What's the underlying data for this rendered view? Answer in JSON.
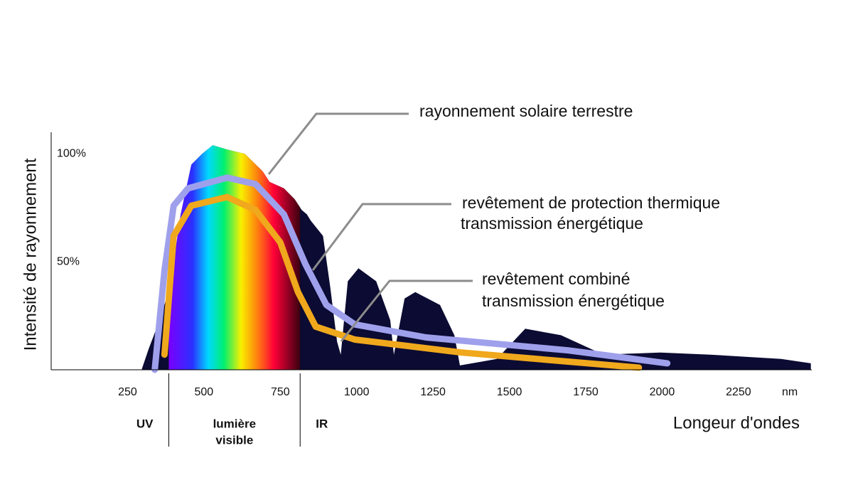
{
  "chart_data": {
    "type": "line",
    "xlim": [
      0,
      2490
    ],
    "ylim": [
      0,
      110
    ],
    "xticks": [
      250,
      500,
      750,
      1000,
      1250,
      1500,
      1750,
      2000,
      2250
    ],
    "yticks": [
      {
        "value": 50,
        "label": "50%"
      },
      {
        "value": 100,
        "label": "100%"
      }
    ],
    "x_unit": "nm",
    "xlabel": "Longeur d'ondes",
    "ylabel": "Intensité de rayonnement",
    "grid": false,
    "region_bounds": [
      385,
      815
    ],
    "regions": [
      {
        "lines": [
          "UV"
        ]
      },
      {
        "lines": [
          "lumière",
          "visible"
        ]
      },
      {
        "lines": [
          "IR"
        ]
      }
    ],
    "series": [
      {
        "color": "#0b0b33",
        "fill": true,
        "x": [
          296,
          320,
          355,
          390,
          424,
          459,
          494,
          529,
          576,
          634,
          692,
          715,
          762,
          797,
          820,
          837,
          850,
          890,
          913,
          936,
          948,
          971,
          1006,
          1064,
          1110,
          1122,
          1157,
          1192,
          1273,
          1320,
          1338,
          1459,
          1552,
          1669,
          1808,
          1994,
          2157,
          2390,
          2487
        ],
        "values": [
          0,
          10,
          23,
          39,
          72,
          95,
          100,
          104,
          102,
          100,
          92,
          87,
          84,
          79,
          74,
          72,
          69,
          62,
          39,
          13,
          7,
          41,
          47,
          41,
          23,
          7,
          33,
          36,
          30,
          16,
          2,
          5,
          19,
          16,
          7,
          8,
          7,
          5,
          3
        ]
      },
      {
        "color": "#9fa0ec",
        "fill": false,
        "x": [
          339,
          371,
          401,
          448,
          576,
          669,
          762,
          832,
          901,
          994,
          1227,
          1692,
          2017
        ],
        "values": [
          0,
          46,
          76,
          84,
          89,
          86,
          72,
          49,
          30,
          21,
          15,
          9,
          3
        ]
      },
      {
        "color": "#f0a81c",
        "fill": false,
        "x": [
          371,
          401,
          459,
          576,
          669,
          750,
          808,
          866,
          994,
          1343,
          1924
        ],
        "values": [
          7,
          62,
          76,
          80,
          74,
          59,
          36,
          20,
          14,
          8,
          1
        ]
      }
    ],
    "annotations": [
      {
        "lines": [
          "rayonnement solaire terrestre"
        ]
      },
      {
        "lines": [
          "revêtement de protection thermique",
          "transmission énergétique"
        ]
      },
      {
        "lines": [
          "revêtement combiné",
          "transmission énergétique"
        ]
      }
    ]
  }
}
